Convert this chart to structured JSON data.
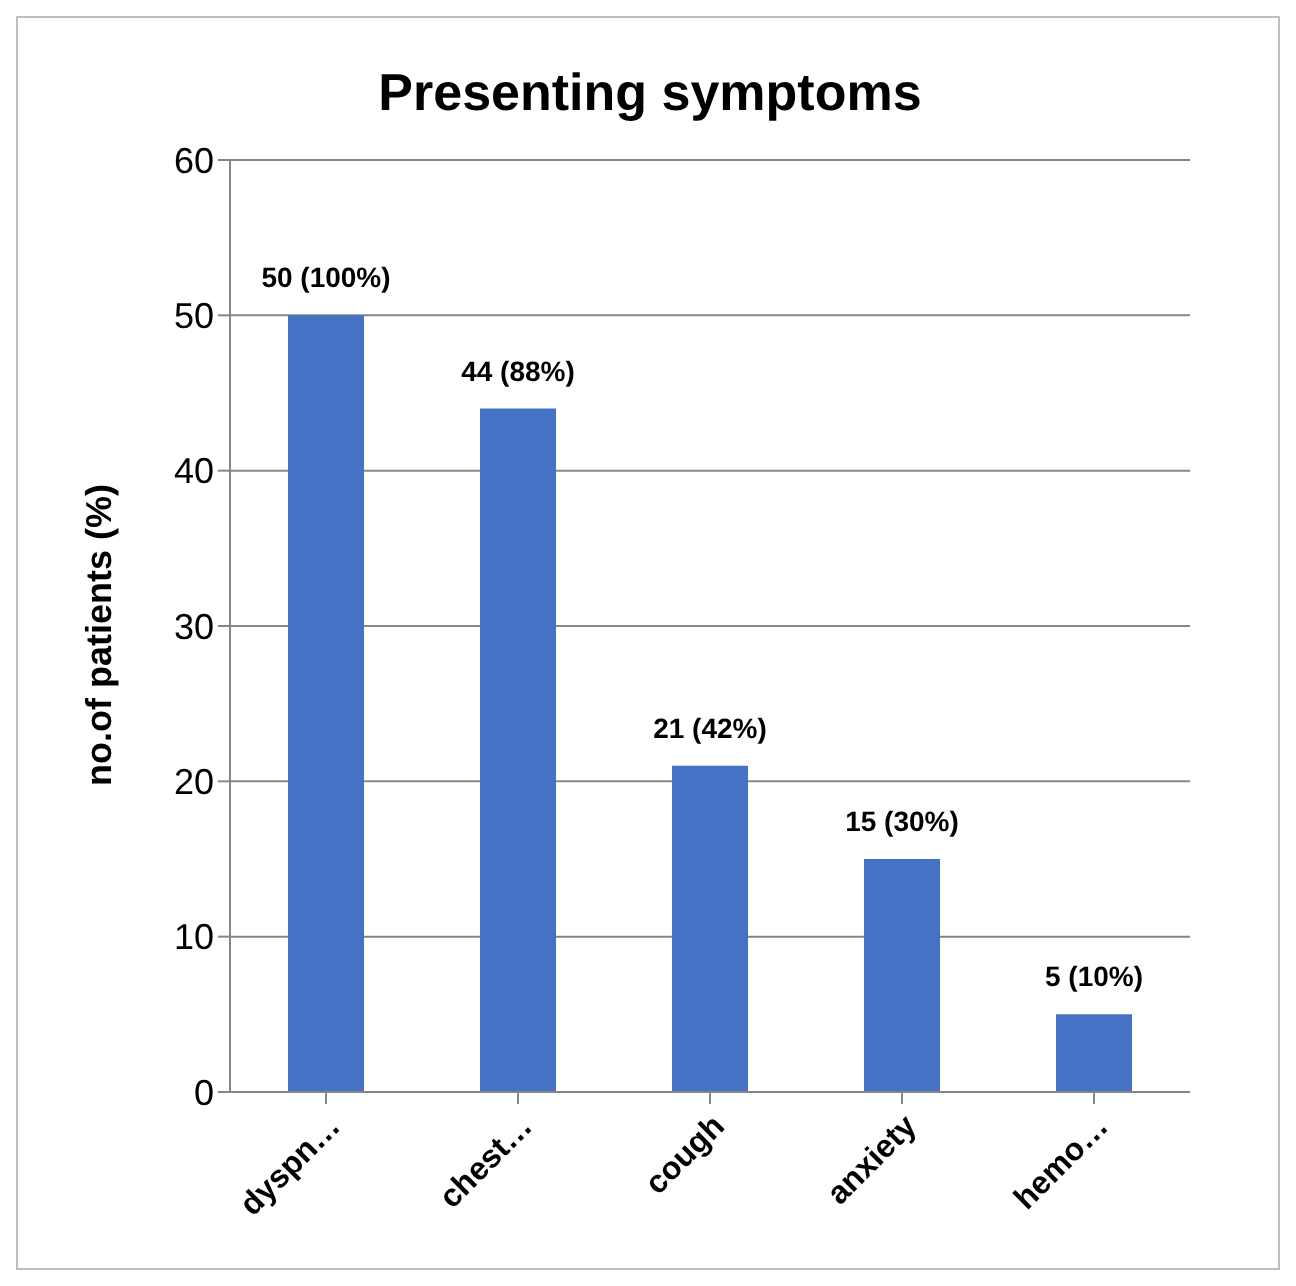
{
  "chart_data": {
    "type": "bar",
    "title": "Presenting symptoms",
    "ylabel": "no.of patients (%)",
    "categories": [
      "dyspn…",
      "chest…",
      "cough",
      "anxiety",
      "hemo…"
    ],
    "values": [
      50,
      44,
      21,
      15,
      5
    ],
    "value_labels": [
      "50 (100%)",
      "44 (88%)",
      "21 (42%)",
      "15 (30%)",
      "5 (10%)"
    ],
    "color": "#4472c4",
    "ylim": [
      0,
      60
    ],
    "yticks": [
      0,
      10,
      20,
      30,
      40,
      50,
      60
    ],
    "grid": "y"
  }
}
